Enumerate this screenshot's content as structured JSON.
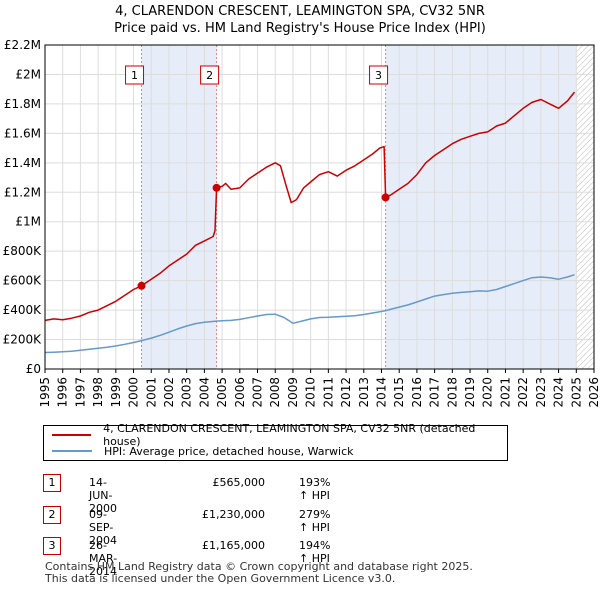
{
  "header": {
    "title_line1": "4, CLARENDON CRESCENT, LEAMINGTON SPA, CV32 5NR",
    "title_line2": "Price paid vs. HM Land Registry's House Price Index (HPI)"
  },
  "colors": {
    "property": "#cc0000",
    "hpi": "#6699cc",
    "shade": "#e6edf8",
    "grid": "#dddddd",
    "vline": "#e08080"
  },
  "chart_data": {
    "type": "line",
    "xlim": [
      1995,
      2026
    ],
    "ylim": [
      0,
      2200000
    ],
    "y_ticks": [
      {
        "value": 0,
        "label": "£0"
      },
      {
        "value": 200000,
        "label": "£200K"
      },
      {
        "value": 400000,
        "label": "£400K"
      },
      {
        "value": 600000,
        "label": "£600K"
      },
      {
        "value": 800000,
        "label": "£800K"
      },
      {
        "value": 1000000,
        "label": "£1M"
      },
      {
        "value": 1200000,
        "label": "£1.2M"
      },
      {
        "value": 1400000,
        "label": "£1.4M"
      },
      {
        "value": 1600000,
        "label": "£1.6M"
      },
      {
        "value": 1800000,
        "label": "£1.8M"
      },
      {
        "value": 2000000,
        "label": "£2M"
      },
      {
        "value": 2200000,
        "label": "£2.2M"
      }
    ],
    "x_ticks": [
      "1995",
      "1996",
      "1997",
      "1998",
      "1999",
      "2000",
      "2001",
      "2002",
      "2003",
      "2004",
      "2005",
      "2006",
      "2007",
      "2008",
      "2009",
      "2010",
      "2011",
      "2012",
      "2013",
      "2014",
      "2015",
      "2016",
      "2017",
      "2018",
      "2019",
      "2020",
      "2021",
      "2022",
      "2023",
      "2024",
      "2025",
      "2026"
    ],
    "shaded_regions": [
      [
        2000.45,
        2004.69
      ],
      [
        2014.23,
        2025.0
      ]
    ],
    "future_hatch_from": 2025.0,
    "series": [
      {
        "name": "4, CLARENDON CRESCENT, LEAMINGTON SPA, CV32 5NR (detached house)",
        "color": "#cc0000",
        "points": [
          [
            1995.0,
            330000
          ],
          [
            1995.5,
            340000
          ],
          [
            1996.0,
            335000
          ],
          [
            1996.5,
            345000
          ],
          [
            1997.0,
            360000
          ],
          [
            1997.5,
            385000
          ],
          [
            1998.0,
            400000
          ],
          [
            1998.5,
            430000
          ],
          [
            1999.0,
            460000
          ],
          [
            1999.5,
            500000
          ],
          [
            2000.0,
            540000
          ],
          [
            2000.45,
            565000
          ],
          [
            2001.0,
            610000
          ],
          [
            2001.5,
            650000
          ],
          [
            2002.0,
            700000
          ],
          [
            2002.5,
            740000
          ],
          [
            2003.0,
            780000
          ],
          [
            2003.5,
            840000
          ],
          [
            2004.0,
            870000
          ],
          [
            2004.5,
            900000
          ],
          [
            2004.6,
            940000
          ],
          [
            2004.69,
            1230000
          ],
          [
            2005.0,
            1240000
          ],
          [
            2005.2,
            1260000
          ],
          [
            2005.5,
            1220000
          ],
          [
            2006.0,
            1230000
          ],
          [
            2006.5,
            1290000
          ],
          [
            2007.0,
            1330000
          ],
          [
            2007.5,
            1370000
          ],
          [
            2008.0,
            1400000
          ],
          [
            2008.3,
            1380000
          ],
          [
            2008.6,
            1250000
          ],
          [
            2008.9,
            1130000
          ],
          [
            2009.2,
            1150000
          ],
          [
            2009.6,
            1230000
          ],
          [
            2010.0,
            1270000
          ],
          [
            2010.5,
            1320000
          ],
          [
            2011.0,
            1340000
          ],
          [
            2011.5,
            1310000
          ],
          [
            2012.0,
            1350000
          ],
          [
            2012.5,
            1380000
          ],
          [
            2013.0,
            1420000
          ],
          [
            2013.5,
            1460000
          ],
          [
            2013.9,
            1500000
          ],
          [
            2014.15,
            1510000
          ],
          [
            2014.23,
            1165000
          ],
          [
            2014.5,
            1180000
          ],
          [
            2015.0,
            1220000
          ],
          [
            2015.5,
            1260000
          ],
          [
            2016.0,
            1320000
          ],
          [
            2016.5,
            1400000
          ],
          [
            2017.0,
            1450000
          ],
          [
            2017.5,
            1490000
          ],
          [
            2018.0,
            1530000
          ],
          [
            2018.5,
            1560000
          ],
          [
            2019.0,
            1580000
          ],
          [
            2019.5,
            1600000
          ],
          [
            2020.0,
            1610000
          ],
          [
            2020.5,
            1650000
          ],
          [
            2021.0,
            1670000
          ],
          [
            2021.5,
            1720000
          ],
          [
            2022.0,
            1770000
          ],
          [
            2022.5,
            1810000
          ],
          [
            2023.0,
            1830000
          ],
          [
            2023.5,
            1800000
          ],
          [
            2024.0,
            1770000
          ],
          [
            2024.5,
            1820000
          ],
          [
            2024.9,
            1880000
          ]
        ]
      },
      {
        "name": "HPI: Average price, detached house, Warwick",
        "color": "#6699cc",
        "points": [
          [
            1995.0,
            112000
          ],
          [
            1995.5,
            114000
          ],
          [
            1996.0,
            117000
          ],
          [
            1996.5,
            121000
          ],
          [
            1997.0,
            127000
          ],
          [
            1997.5,
            134000
          ],
          [
            1998.0,
            141000
          ],
          [
            1998.5,
            148000
          ],
          [
            1999.0,
            156000
          ],
          [
            1999.5,
            168000
          ],
          [
            2000.0,
            180000
          ],
          [
            2000.45,
            193000
          ],
          [
            2001.0,
            210000
          ],
          [
            2001.5,
            228000
          ],
          [
            2002.0,
            250000
          ],
          [
            2002.5,
            272000
          ],
          [
            2003.0,
            292000
          ],
          [
            2003.5,
            308000
          ],
          [
            2004.0,
            318000
          ],
          [
            2004.69,
            325000
          ],
          [
            2005.0,
            328000
          ],
          [
            2005.5,
            330000
          ],
          [
            2006.0,
            337000
          ],
          [
            2006.5,
            348000
          ],
          [
            2007.0,
            360000
          ],
          [
            2007.5,
            370000
          ],
          [
            2008.0,
            372000
          ],
          [
            2008.5,
            350000
          ],
          [
            2009.0,
            310000
          ],
          [
            2009.5,
            325000
          ],
          [
            2010.0,
            340000
          ],
          [
            2010.5,
            350000
          ],
          [
            2011.0,
            352000
          ],
          [
            2011.5,
            355000
          ],
          [
            2012.0,
            358000
          ],
          [
            2012.5,
            362000
          ],
          [
            2013.0,
            370000
          ],
          [
            2013.5,
            380000
          ],
          [
            2014.23,
            396000
          ],
          [
            2014.5,
            405000
          ],
          [
            2015.0,
            420000
          ],
          [
            2015.5,
            435000
          ],
          [
            2016.0,
            455000
          ],
          [
            2016.5,
            475000
          ],
          [
            2017.0,
            495000
          ],
          [
            2017.5,
            505000
          ],
          [
            2018.0,
            515000
          ],
          [
            2018.5,
            520000
          ],
          [
            2019.0,
            525000
          ],
          [
            2019.5,
            530000
          ],
          [
            2020.0,
            528000
          ],
          [
            2020.5,
            540000
          ],
          [
            2021.0,
            560000
          ],
          [
            2021.5,
            580000
          ],
          [
            2022.0,
            600000
          ],
          [
            2022.5,
            620000
          ],
          [
            2023.0,
            625000
          ],
          [
            2023.5,
            620000
          ],
          [
            2024.0,
            610000
          ],
          [
            2024.5,
            625000
          ],
          [
            2024.9,
            640000
          ]
        ]
      }
    ],
    "markers": [
      {
        "id": "1",
        "year": 2000.45,
        "value": 565000
      },
      {
        "id": "2",
        "year": 2004.69,
        "value": 1230000
      },
      {
        "id": "3",
        "year": 2014.23,
        "value": 1165000
      }
    ]
  },
  "legend": {
    "property_label": "4, CLARENDON CRESCENT, LEAMINGTON SPA, CV32 5NR (detached house)",
    "hpi_label": "HPI: Average price, detached house, Warwick"
  },
  "transactions": [
    {
      "id": "1",
      "date": "14-JUN-2000",
      "price": "£565,000",
      "hpi": "193% ↑ HPI"
    },
    {
      "id": "2",
      "date": "09-SEP-2004",
      "price": "£1,230,000",
      "hpi": "279% ↑ HPI"
    },
    {
      "id": "3",
      "date": "26-MAR-2014",
      "price": "£1,165,000",
      "hpi": "194% ↑ HPI"
    }
  ],
  "footer": {
    "line1": "Contains HM Land Registry data © Crown copyright and database right 2025.",
    "line2": "This data is licensed under the Open Government Licence v3.0."
  }
}
